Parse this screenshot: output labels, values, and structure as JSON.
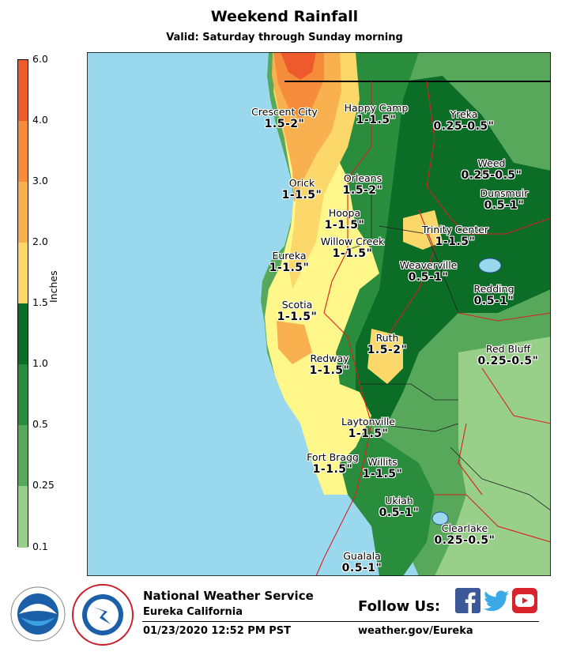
{
  "title": "Weekend Rainfall",
  "subtitle": "Valid: Saturday through Sunday morning",
  "legend": {
    "title": "Inches",
    "ticks": [
      "6.0",
      "4.0",
      "3.0",
      "2.0",
      "1.5",
      "1.0",
      "0.5",
      "0.25",
      "0.1"
    ],
    "colors": [
      "#ee5a2b",
      "#f48c3c",
      "#f9b04e",
      "#fcd76a",
      "#fffb8a",
      "#0b6d26",
      "#2a8d3e",
      "#58a85b",
      "#98d08a"
    ]
  },
  "cities": [
    {
      "name": "Crescent City",
      "amount": "1.5-2\""
    },
    {
      "name": "Happy Camp",
      "amount": "1-1.5\""
    },
    {
      "name": "Yreka",
      "amount": "0.25-0.5\""
    },
    {
      "name": "Weed",
      "amount": "0.25-0.5\""
    },
    {
      "name": "Orick",
      "amount": "1-1.5\""
    },
    {
      "name": "Orleans",
      "amount": "1.5-2\""
    },
    {
      "name": "Dunsmuir",
      "amount": "0.5-1\""
    },
    {
      "name": "Hoopa",
      "amount": "1-1.5\""
    },
    {
      "name": "Trinity Center",
      "amount": "1-1.5\""
    },
    {
      "name": "Willow Creek",
      "amount": "1-1.5\""
    },
    {
      "name": "Eureka",
      "amount": "1-1.5\""
    },
    {
      "name": "Weaverville",
      "amount": "0.5-1\""
    },
    {
      "name": "Redding",
      "amount": "0.5-1\""
    },
    {
      "name": "Scotia",
      "amount": "1-1.5\""
    },
    {
      "name": "Ruth",
      "amount": "1.5-2\""
    },
    {
      "name": "Red Bluff",
      "amount": "0.25-0.5\""
    },
    {
      "name": "Redway",
      "amount": "1-1.5\""
    },
    {
      "name": "Laytonville",
      "amount": "1-1.5\""
    },
    {
      "name": "Fort Bragg",
      "amount": "1-1.5\""
    },
    {
      "name": "Willits",
      "amount": "1-1.5\""
    },
    {
      "name": "Ukiah",
      "amount": "0.5-1\""
    },
    {
      "name": "Clearlake",
      "amount": "0.25-0.5\""
    },
    {
      "name": "Gualala",
      "amount": "0.5-1\""
    }
  ],
  "footer": {
    "office": "National Weather Service",
    "location": "Eureka California",
    "timestamp": "01/23/2020 12:52 PM PST",
    "follow": "Follow Us:",
    "website": "weather.gov/Eureka",
    "social_icons": [
      "facebook-icon",
      "twitter-icon",
      "youtube-icon"
    ]
  },
  "colors": {
    "ocean": "#a6dbef",
    "border": "#d92020"
  }
}
